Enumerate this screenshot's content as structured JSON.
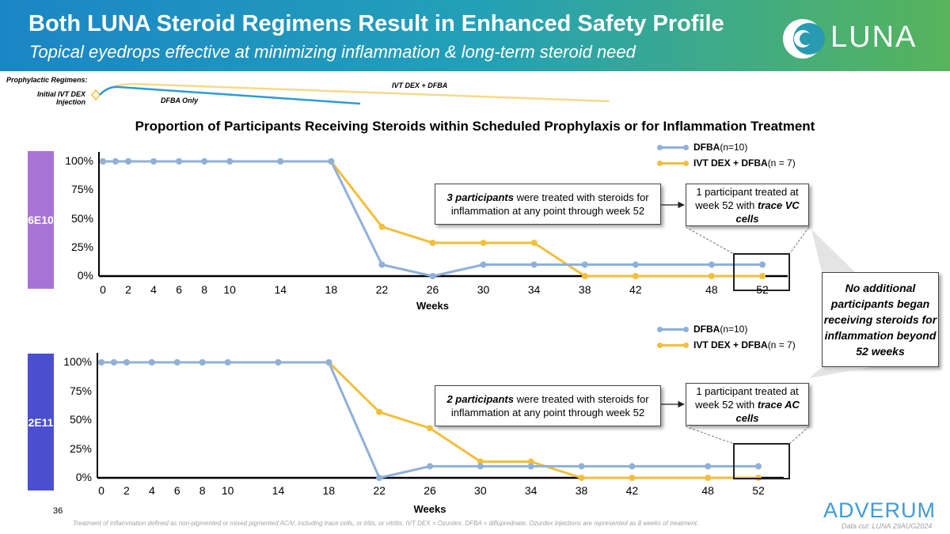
{
  "header": {
    "title": "Both LUNA Steroid Regimens Result in Enhanced Safety Profile",
    "subtitle": "Topical eyedrops effective at minimizing inflammation & long-term steroid need",
    "logo_text": "LUNA",
    "bg_start": "#1a86c6",
    "bg_end": "#57b45b"
  },
  "regimens": {
    "heading": "Prophylactic Regimens:",
    "initial_label_line1": "Initial IVT DEX",
    "initial_label_line2": "Injection",
    "ivt_dex_label": "IVT DEX + DFBA",
    "dfba_label": "DFBA Only"
  },
  "chart_title": "Proportion of Participants Receiving Steroids within Scheduled Prophylaxis or for Inflammation Treatment",
  "side_callout": "No additional participants began receiving steroids for inflammation beyond 52 weeks",
  "footer": {
    "page_number": "36",
    "footnote": "Treatment of inflammation defined as non-pigmented or mixed pigmented AC/V, including trace cells, or iritis, or vitritis. IVT DEX = Ozurdex, DFBA = difluprednate, Ozurdex injections are represented as 8 weeks of treatment.",
    "data_cut": "Data cut: LUNA 29AUG2024",
    "company_logo": "ADVERUM"
  },
  "colors": {
    "dfba": "#8fb0d8",
    "ivt_dex_dfba": "#f2bf3c",
    "panel_6e10": "#a873d6",
    "panel_2e11": "#4a4fd0"
  },
  "chart_data": [
    {
      "type": "line",
      "panel_label": "6E10",
      "x": [
        0,
        1,
        2,
        4,
        6,
        8,
        10,
        14,
        18,
        22,
        26,
        30,
        34,
        38,
        42,
        48,
        52
      ],
      "x_tick_labels": [
        "0",
        "2",
        "4",
        "6",
        "8",
        "10",
        "14",
        "18",
        "22",
        "26",
        "30",
        "34",
        "38",
        "42",
        "48",
        "52"
      ],
      "y_tick_labels": [
        "0%",
        "25%",
        "50%",
        "75%",
        "100%"
      ],
      "ylim": [
        0,
        100
      ],
      "xlabel": "Weeks",
      "legend": [
        {
          "name": "DFBA",
          "suffix": " (n=10)"
        },
        {
          "name": "IVT DEX + DFBA",
          "suffix": " (n = 7)"
        }
      ],
      "series": [
        {
          "name": "DFBA",
          "values": [
            100,
            100,
            100,
            100,
            100,
            100,
            100,
            100,
            100,
            10,
            0,
            10,
            10,
            10,
            10,
            10,
            10
          ]
        },
        {
          "name": "IVT DEX + DFBA",
          "values": [
            100,
            100,
            100,
            100,
            100,
            100,
            100,
            100,
            100,
            43,
            29,
            29,
            29,
            0,
            0,
            0,
            0
          ]
        }
      ],
      "callout_main": {
        "emphasis": "3 participants",
        "text": " were treated with steroids for inflammation at any point through week 52"
      },
      "callout_week52": {
        "text": "1 participant treated at week 52 with ",
        "emphasis": "trace VC cells"
      }
    },
    {
      "type": "line",
      "panel_label": "2E11",
      "x": [
        0,
        1,
        2,
        4,
        6,
        8,
        10,
        14,
        18,
        22,
        26,
        30,
        34,
        38,
        42,
        48,
        52
      ],
      "x_tick_labels": [
        "0",
        "2",
        "4",
        "6",
        "8",
        "10",
        "14",
        "18",
        "22",
        "26",
        "30",
        "34",
        "38",
        "42",
        "48",
        "52"
      ],
      "y_tick_labels": [
        "0%",
        "25%",
        "50%",
        "75%",
        "100%"
      ],
      "ylim": [
        0,
        100
      ],
      "xlabel": "Weeks",
      "legend": [
        {
          "name": "DFBA",
          "suffix": " (n=10)"
        },
        {
          "name": "IVT DEX + DFBA",
          "suffix": " (n = 7)"
        }
      ],
      "series": [
        {
          "name": "DFBA",
          "values": [
            100,
            100,
            100,
            100,
            100,
            100,
            100,
            100,
            100,
            0,
            10,
            10,
            10,
            10,
            10,
            10,
            10
          ]
        },
        {
          "name": "IVT DEX + DFBA",
          "values": [
            100,
            100,
            100,
            100,
            100,
            100,
            100,
            100,
            100,
            57,
            43,
            14,
            14,
            0,
            0,
            0,
            0
          ]
        }
      ],
      "callout_main": {
        "emphasis": "2 participants",
        "text": " were treated with steroids for inflammation at any point through week 52"
      },
      "callout_week52": {
        "text": "1 participant treated at week 52 with ",
        "emphasis": "trace AC cells"
      }
    }
  ]
}
